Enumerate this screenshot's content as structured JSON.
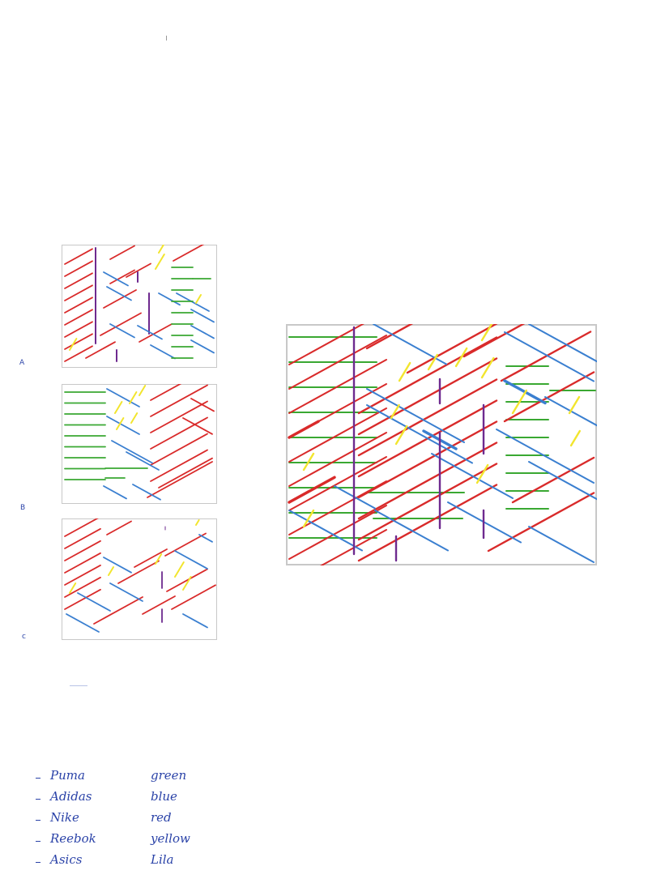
{
  "palette": {
    "green": "#3aa832",
    "blue": "#3a7fd0",
    "red": "#d92a2a",
    "yellow": "#f2e52e",
    "lila": "#6e2a8f",
    "ink": "#2b43a8",
    "frame": "#c8c8c8"
  },
  "labels": {
    "a": "A",
    "b": "B",
    "c": "c"
  },
  "legend": [
    {
      "brand": "Puma",
      "color_word": "green"
    },
    {
      "brand": "Adidas",
      "color_word": "blue"
    },
    {
      "brand": "Nike",
      "color_word": "red"
    },
    {
      "brand": "Reebok",
      "color_word": "yellow"
    },
    {
      "brand": "Asics",
      "color_word": "Lila"
    }
  ]
}
